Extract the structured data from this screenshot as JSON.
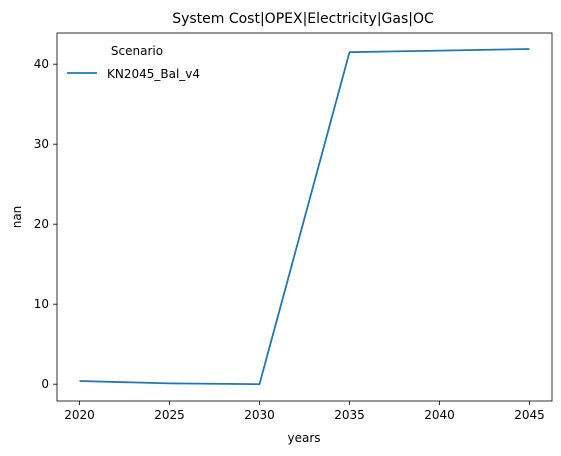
{
  "chart_data": {
    "type": "line",
    "title": "System Cost|OPEX|Electricity|Gas|OC",
    "xlabel": "years",
    "ylabel": "nan",
    "x": [
      2020,
      2025,
      2030,
      2035,
      2040,
      2045
    ],
    "xticks": [
      2020,
      2025,
      2030,
      2035,
      2040,
      2045
    ],
    "yticks": [
      0,
      10,
      20,
      30,
      40
    ],
    "xlim": [
      2018.75,
      2046.25
    ],
    "ylim": [
      -2.1,
      43.9
    ],
    "grid": false,
    "legend": {
      "title": "Scenario",
      "placement": "top-left"
    },
    "series": [
      {
        "name": "KN2045_Bal_v4",
        "color": "#1f77b4",
        "values": [
          0.4,
          0.1,
          0.0,
          41.5,
          41.7,
          41.9
        ]
      }
    ]
  }
}
